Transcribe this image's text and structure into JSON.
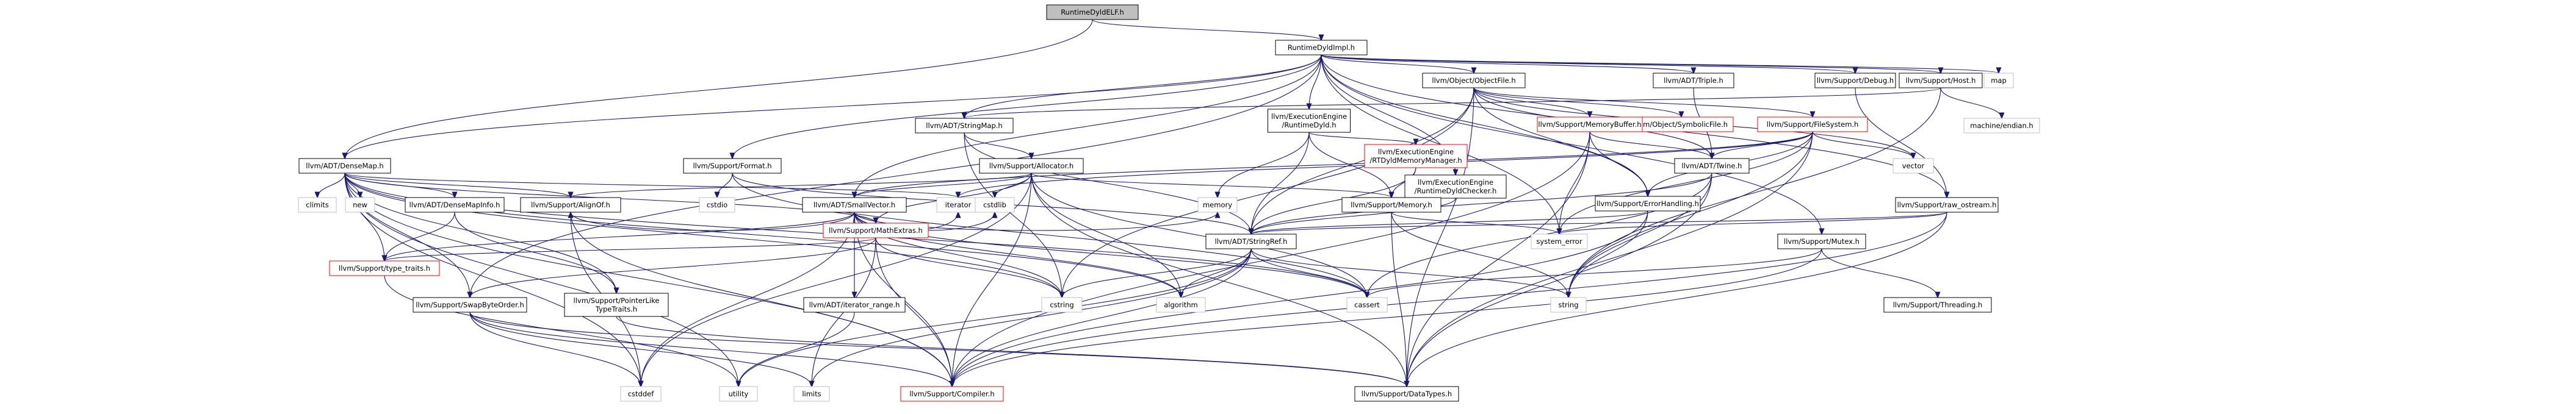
{
  "graph": {
    "nodes": [
      {
        "id": "root",
        "lines": [
          "RuntimeDyldELF.h"
        ],
        "style": "root"
      },
      {
        "id": "impl",
        "lines": [
          "RuntimeDyldImpl.h"
        ]
      },
      {
        "id": "densemap",
        "lines": [
          "llvm/ADT/DenseMap.h"
        ]
      },
      {
        "id": "stringmap",
        "lines": [
          "llvm/ADT/StringMap.h"
        ]
      },
      {
        "id": "triple",
        "lines": [
          "llvm/ADT/Triple.h"
        ]
      },
      {
        "id": "objectfile",
        "lines": [
          "llvm/Object/ObjectFile.h"
        ]
      },
      {
        "id": "rtdyld",
        "lines": [
          "llvm/ExecutionEngine",
          "/RuntimeDyld.h"
        ]
      },
      {
        "id": "rtdchecker",
        "lines": [
          "llvm/ExecutionEngine",
          "/RuntimeDyldChecker.h"
        ]
      },
      {
        "id": "format",
        "lines": [
          "llvm/Support/Format.h"
        ]
      },
      {
        "id": "debug",
        "lines": [
          "llvm/Support/Debug.h"
        ]
      },
      {
        "id": "host",
        "lines": [
          "llvm/Support/Host.h"
        ]
      },
      {
        "id": "map",
        "lines": [
          "map"
        ],
        "style": "gray"
      },
      {
        "id": "allocator",
        "lines": [
          "llvm/Support/Allocator.h"
        ]
      },
      {
        "id": "symbolicfile",
        "lines": [
          "llvm/Object/SymbolicFile.h"
        ],
        "style": "red"
      },
      {
        "id": "memorybuffer",
        "lines": [
          "llvm/Support/MemoryBuffer.h"
        ],
        "style": "red"
      },
      {
        "id": "filesystem",
        "lines": [
          "llvm/Support/FileSystem.h"
        ],
        "style": "red"
      },
      {
        "id": "rtmemmgr",
        "lines": [
          "llvm/ExecutionEngine",
          "/RTDyldMemoryManager.h"
        ],
        "style": "red"
      },
      {
        "id": "machendian",
        "lines": [
          "machine/endian.h"
        ],
        "style": "gray"
      },
      {
        "id": "vector",
        "lines": [
          "vector"
        ],
        "style": "gray"
      },
      {
        "id": "twine",
        "lines": [
          "llvm/ADT/Twine.h"
        ]
      },
      {
        "id": "errorhandling",
        "lines": [
          "llvm/Support/ErrorHandling.h"
        ]
      },
      {
        "id": "smallvector",
        "lines": [
          "llvm/ADT/SmallVector.h"
        ]
      },
      {
        "id": "memory",
        "lines": [
          "llvm/Support/Memory.h"
        ]
      },
      {
        "id": "rawostream",
        "lines": [
          "llvm/Support/raw_ostream.h"
        ]
      },
      {
        "id": "climits",
        "lines": [
          "climits"
        ],
        "style": "gray"
      },
      {
        "id": "new",
        "lines": [
          "new"
        ],
        "style": "gray"
      },
      {
        "id": "densemapinfo",
        "lines": [
          "llvm/ADT/DenseMapInfo.h"
        ]
      },
      {
        "id": "alignof",
        "lines": [
          "llvm/Support/AlignOf.h"
        ]
      },
      {
        "id": "cstdio",
        "lines": [
          "cstdio"
        ],
        "style": "gray"
      },
      {
        "id": "mathextras",
        "lines": [
          "llvm/Support/MathExtras.h"
        ],
        "style": "red"
      },
      {
        "id": "iterator",
        "lines": [
          "iterator"
        ],
        "style": "gray"
      },
      {
        "id": "cstdlib",
        "lines": [
          "cstdlib"
        ],
        "style": "gray"
      },
      {
        "id": "memoryhdr",
        "lines": [
          "memory"
        ],
        "style": "gray"
      },
      {
        "id": "stringref",
        "lines": [
          "llvm/ADT/StringRef.h"
        ]
      },
      {
        "id": "systemerror",
        "lines": [
          "system_error"
        ],
        "style": "gray"
      },
      {
        "id": "mutex",
        "lines": [
          "llvm/Support/Mutex.h"
        ]
      },
      {
        "id": "typetraits",
        "lines": [
          "llvm/Support/type_traits.h"
        ],
        "style": "red"
      },
      {
        "id": "swapbyteorder",
        "lines": [
          "llvm/Support/SwapByteOrder.h"
        ]
      },
      {
        "id": "pointerlike",
        "lines": [
          "llvm/Support/PointerLike",
          "TypeTraits.h"
        ]
      },
      {
        "id": "iteratorrange",
        "lines": [
          "llvm/ADT/iterator_range.h"
        ]
      },
      {
        "id": "cstring",
        "lines": [
          "cstring"
        ],
        "style": "gray"
      },
      {
        "id": "algorithm",
        "lines": [
          "algorithm"
        ],
        "style": "gray"
      },
      {
        "id": "cassert",
        "lines": [
          "cassert"
        ],
        "style": "gray"
      },
      {
        "id": "string",
        "lines": [
          "string"
        ],
        "style": "gray"
      },
      {
        "id": "threading",
        "lines": [
          "llvm/Support/Threading.h"
        ]
      },
      {
        "id": "cstddef",
        "lines": [
          "cstddef"
        ],
        "style": "gray"
      },
      {
        "id": "utility",
        "lines": [
          "utility"
        ],
        "style": "gray"
      },
      {
        "id": "limits",
        "lines": [
          "limits"
        ],
        "style": "gray"
      },
      {
        "id": "compiler",
        "lines": [
          "llvm/Support/Compiler.h"
        ],
        "style": "red"
      },
      {
        "id": "datatypes",
        "lines": [
          "llvm/Support/DataTypes.h"
        ]
      }
    ],
    "edges": [
      [
        "root",
        "impl"
      ],
      [
        "root",
        "densemap"
      ],
      [
        "impl",
        "densemap"
      ],
      [
        "impl",
        "stringmap"
      ],
      [
        "impl",
        "triple"
      ],
      [
        "impl",
        "objectfile"
      ],
      [
        "impl",
        "rtdyld"
      ],
      [
        "impl",
        "rtdchecker"
      ],
      [
        "impl",
        "format"
      ],
      [
        "impl",
        "debug"
      ],
      [
        "impl",
        "host"
      ],
      [
        "impl",
        "map"
      ],
      [
        "impl",
        "smallvector"
      ],
      [
        "impl",
        "errorhandling"
      ],
      [
        "impl",
        "mutex"
      ],
      [
        "impl",
        "rawostream"
      ],
      [
        "impl",
        "systemerror"
      ],
      [
        "impl",
        "swapbyteorder"
      ],
      [
        "objectfile",
        "symbolicfile"
      ],
      [
        "objectfile",
        "memorybuffer"
      ],
      [
        "objectfile",
        "filesystem"
      ],
      [
        "objectfile",
        "vector"
      ],
      [
        "objectfile",
        "errorhandling"
      ],
      [
        "objectfile",
        "stringref"
      ],
      [
        "objectfile",
        "datatypes"
      ],
      [
        "objectfile",
        "cstring"
      ],
      [
        "objectfile",
        "twine"
      ],
      [
        "rtdyld",
        "rtmemmgr"
      ],
      [
        "rtdyld",
        "memory"
      ],
      [
        "rtdyld",
        "stringref"
      ],
      [
        "rtdyld",
        "memoryhdr"
      ],
      [
        "rtdchecker",
        "stringref"
      ],
      [
        "host",
        "machendian"
      ],
      [
        "host",
        "stringmap"
      ],
      [
        "host",
        "string"
      ],
      [
        "debug",
        "rawostream"
      ],
      [
        "triple",
        "twine"
      ],
      [
        "stringmap",
        "allocator"
      ],
      [
        "stringmap",
        "stringref"
      ],
      [
        "stringmap",
        "cstring"
      ],
      [
        "allocator",
        "smallvector"
      ],
      [
        "allocator",
        "alignof"
      ],
      [
        "allocator",
        "mathextras"
      ],
      [
        "allocator",
        "cstdlib"
      ],
      [
        "allocator",
        "compiler"
      ],
      [
        "allocator",
        "datatypes"
      ],
      [
        "allocator",
        "memory"
      ],
      [
        "allocator",
        "algorithm"
      ],
      [
        "allocator",
        "cassert"
      ],
      [
        "allocator",
        "cstddef"
      ],
      [
        "memorybuffer",
        "twine"
      ],
      [
        "memorybuffer",
        "compiler"
      ],
      [
        "memorybuffer",
        "datatypes"
      ],
      [
        "memorybuffer",
        "systemerror"
      ],
      [
        "memorybuffer",
        "errorhandling"
      ],
      [
        "filesystem",
        "twine"
      ],
      [
        "filesystem",
        "smallvector"
      ],
      [
        "filesystem",
        "datatypes"
      ],
      [
        "filesystem",
        "errorhandling"
      ],
      [
        "filesystem",
        "vector"
      ],
      [
        "filesystem",
        "string"
      ],
      [
        "filesystem",
        "systemerror"
      ],
      [
        "filesystem",
        "iterator"
      ],
      [
        "rtmemmgr",
        "memory"
      ],
      [
        "rtmemmgr",
        "stringref"
      ],
      [
        "twine",
        "stringref"
      ],
      [
        "twine",
        "datatypes"
      ],
      [
        "twine",
        "cassert"
      ],
      [
        "twine",
        "string"
      ],
      [
        "errorhandling",
        "stringref"
      ],
      [
        "errorhandling",
        "compiler"
      ],
      [
        "errorhandling",
        "string"
      ],
      [
        "format",
        "cstdio"
      ],
      [
        "format",
        "cassert"
      ],
      [
        "format",
        "stringref"
      ],
      [
        "smallvector",
        "alignof"
      ],
      [
        "smallvector",
        "compiler"
      ],
      [
        "smallvector",
        "mathextras"
      ],
      [
        "smallvector",
        "typetraits"
      ],
      [
        "smallvector",
        "iteratorrange"
      ],
      [
        "smallvector",
        "algorithm"
      ],
      [
        "smallvector",
        "cassert"
      ],
      [
        "smallvector",
        "cstddef"
      ],
      [
        "smallvector",
        "cstdlib"
      ],
      [
        "smallvector",
        "cstring"
      ],
      [
        "smallvector",
        "iterator"
      ],
      [
        "smallvector",
        "memoryhdr"
      ],
      [
        "memory",
        "datatypes"
      ],
      [
        "memory",
        "systemerror"
      ],
      [
        "memory",
        "string"
      ],
      [
        "rawostream",
        "stringref"
      ],
      [
        "rawostream",
        "compiler"
      ],
      [
        "rawostream",
        "datatypes"
      ],
      [
        "rawostream",
        "systemerror"
      ],
      [
        "densemap",
        "densemapinfo"
      ],
      [
        "densemap",
        "alignof"
      ],
      [
        "densemap",
        "compiler"
      ],
      [
        "densemap",
        "mathextras"
      ],
      [
        "densemap",
        "pointerlike"
      ],
      [
        "densemap",
        "typetraits"
      ],
      [
        "densemap",
        "algorithm"
      ],
      [
        "densemap",
        "cassert"
      ],
      [
        "densemap",
        "climits"
      ],
      [
        "densemap",
        "cstddef"
      ],
      [
        "densemap",
        "cstring"
      ],
      [
        "densemap",
        "iterator"
      ],
      [
        "densemap",
        "new"
      ],
      [
        "densemap",
        "utility"
      ],
      [
        "densemap",
        "swapbyteorder"
      ],
      [
        "densemapinfo",
        "pointerlike"
      ],
      [
        "densemapinfo",
        "typetraits"
      ],
      [
        "alignof",
        "compiler"
      ],
      [
        "alignof",
        "cstddef"
      ],
      [
        "mathextras",
        "compiler"
      ],
      [
        "mathextras",
        "swapbyteorder"
      ],
      [
        "mathextras",
        "cstring"
      ],
      [
        "mathextras",
        "typetraits"
      ],
      [
        "mathextras",
        "limits"
      ],
      [
        "stringref",
        "compiler"
      ],
      [
        "stringref",
        "algorithm"
      ],
      [
        "stringref",
        "cassert"
      ],
      [
        "stringref",
        "cstring"
      ],
      [
        "stringref",
        "limits"
      ],
      [
        "stringref",
        "string"
      ],
      [
        "stringref",
        "utility"
      ],
      [
        "mutex",
        "compiler"
      ],
      [
        "mutex",
        "threading"
      ],
      [
        "mutex",
        "cassert"
      ],
      [
        "swapbyteorder",
        "compiler"
      ],
      [
        "swapbyteorder",
        "datatypes"
      ],
      [
        "swapbyteorder",
        "cstddef"
      ],
      [
        "swapbyteorder",
        "limits"
      ],
      [
        "pointerlike",
        "datatypes"
      ],
      [
        "iteratorrange",
        "utility"
      ],
      [
        "typetraits",
        "utility"
      ]
    ]
  }
}
